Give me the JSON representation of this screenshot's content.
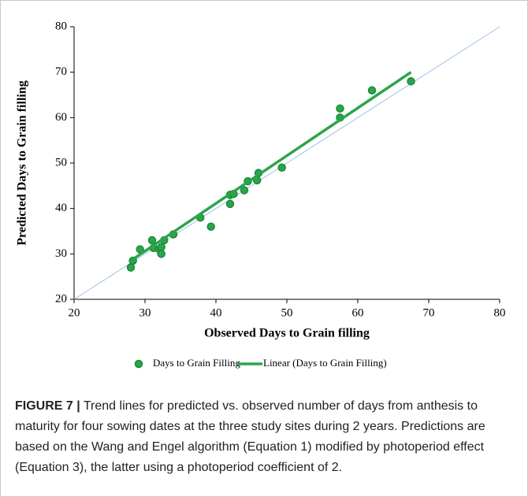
{
  "chart_data": {
    "type": "scatter",
    "xlabel": "Observed Days to Grain filling",
    "ylabel": "Predicted Days to Grain filling",
    "xlim": [
      20,
      80
    ],
    "ylim": [
      20,
      80
    ],
    "xticks": [
      20,
      30,
      40,
      50,
      60,
      70,
      80
    ],
    "yticks": [
      20,
      30,
      40,
      50,
      60,
      70,
      80
    ],
    "grid": false,
    "legend": "bottom",
    "diagonal_color": "#9dc3e6",
    "series": [
      {
        "name": "Days to Grain Filling",
        "type": "scatter",
        "color": "#2ca54a",
        "x": [
          28,
          28.3,
          29.3,
          31,
          31.2,
          32,
          32.3,
          32.3,
          32.7,
          34,
          37.8,
          39.3,
          42,
          42,
          42.5,
          44,
          44.5,
          45.8,
          46,
          49.3,
          57.5,
          57.5,
          62,
          67.5
        ],
        "values": [
          27,
          28.5,
          31,
          33,
          31.3,
          31,
          30,
          31.5,
          33,
          34.3,
          38,
          36,
          43,
          41,
          43.2,
          44,
          46,
          46.2,
          47.8,
          49,
          62,
          60,
          66,
          68
        ]
      },
      {
        "name": "Linear (Days to Grain Filling)",
        "type": "line",
        "color": "#2ca54a",
        "x": [
          28,
          67.5
        ],
        "values": [
          28.5,
          70
        ]
      }
    ]
  },
  "caption": {
    "label": "FIGURE 7 |",
    "text": "Trend lines for predicted vs. observed number of days from anthesis to maturity for four sowing dates at the three study sites during 2 years. Predictions are based on the Wang and Engel algorithm (Equation 1) modified by photoperiod effect (Equation 3), the latter using a photoperiod coefficient of 2."
  }
}
